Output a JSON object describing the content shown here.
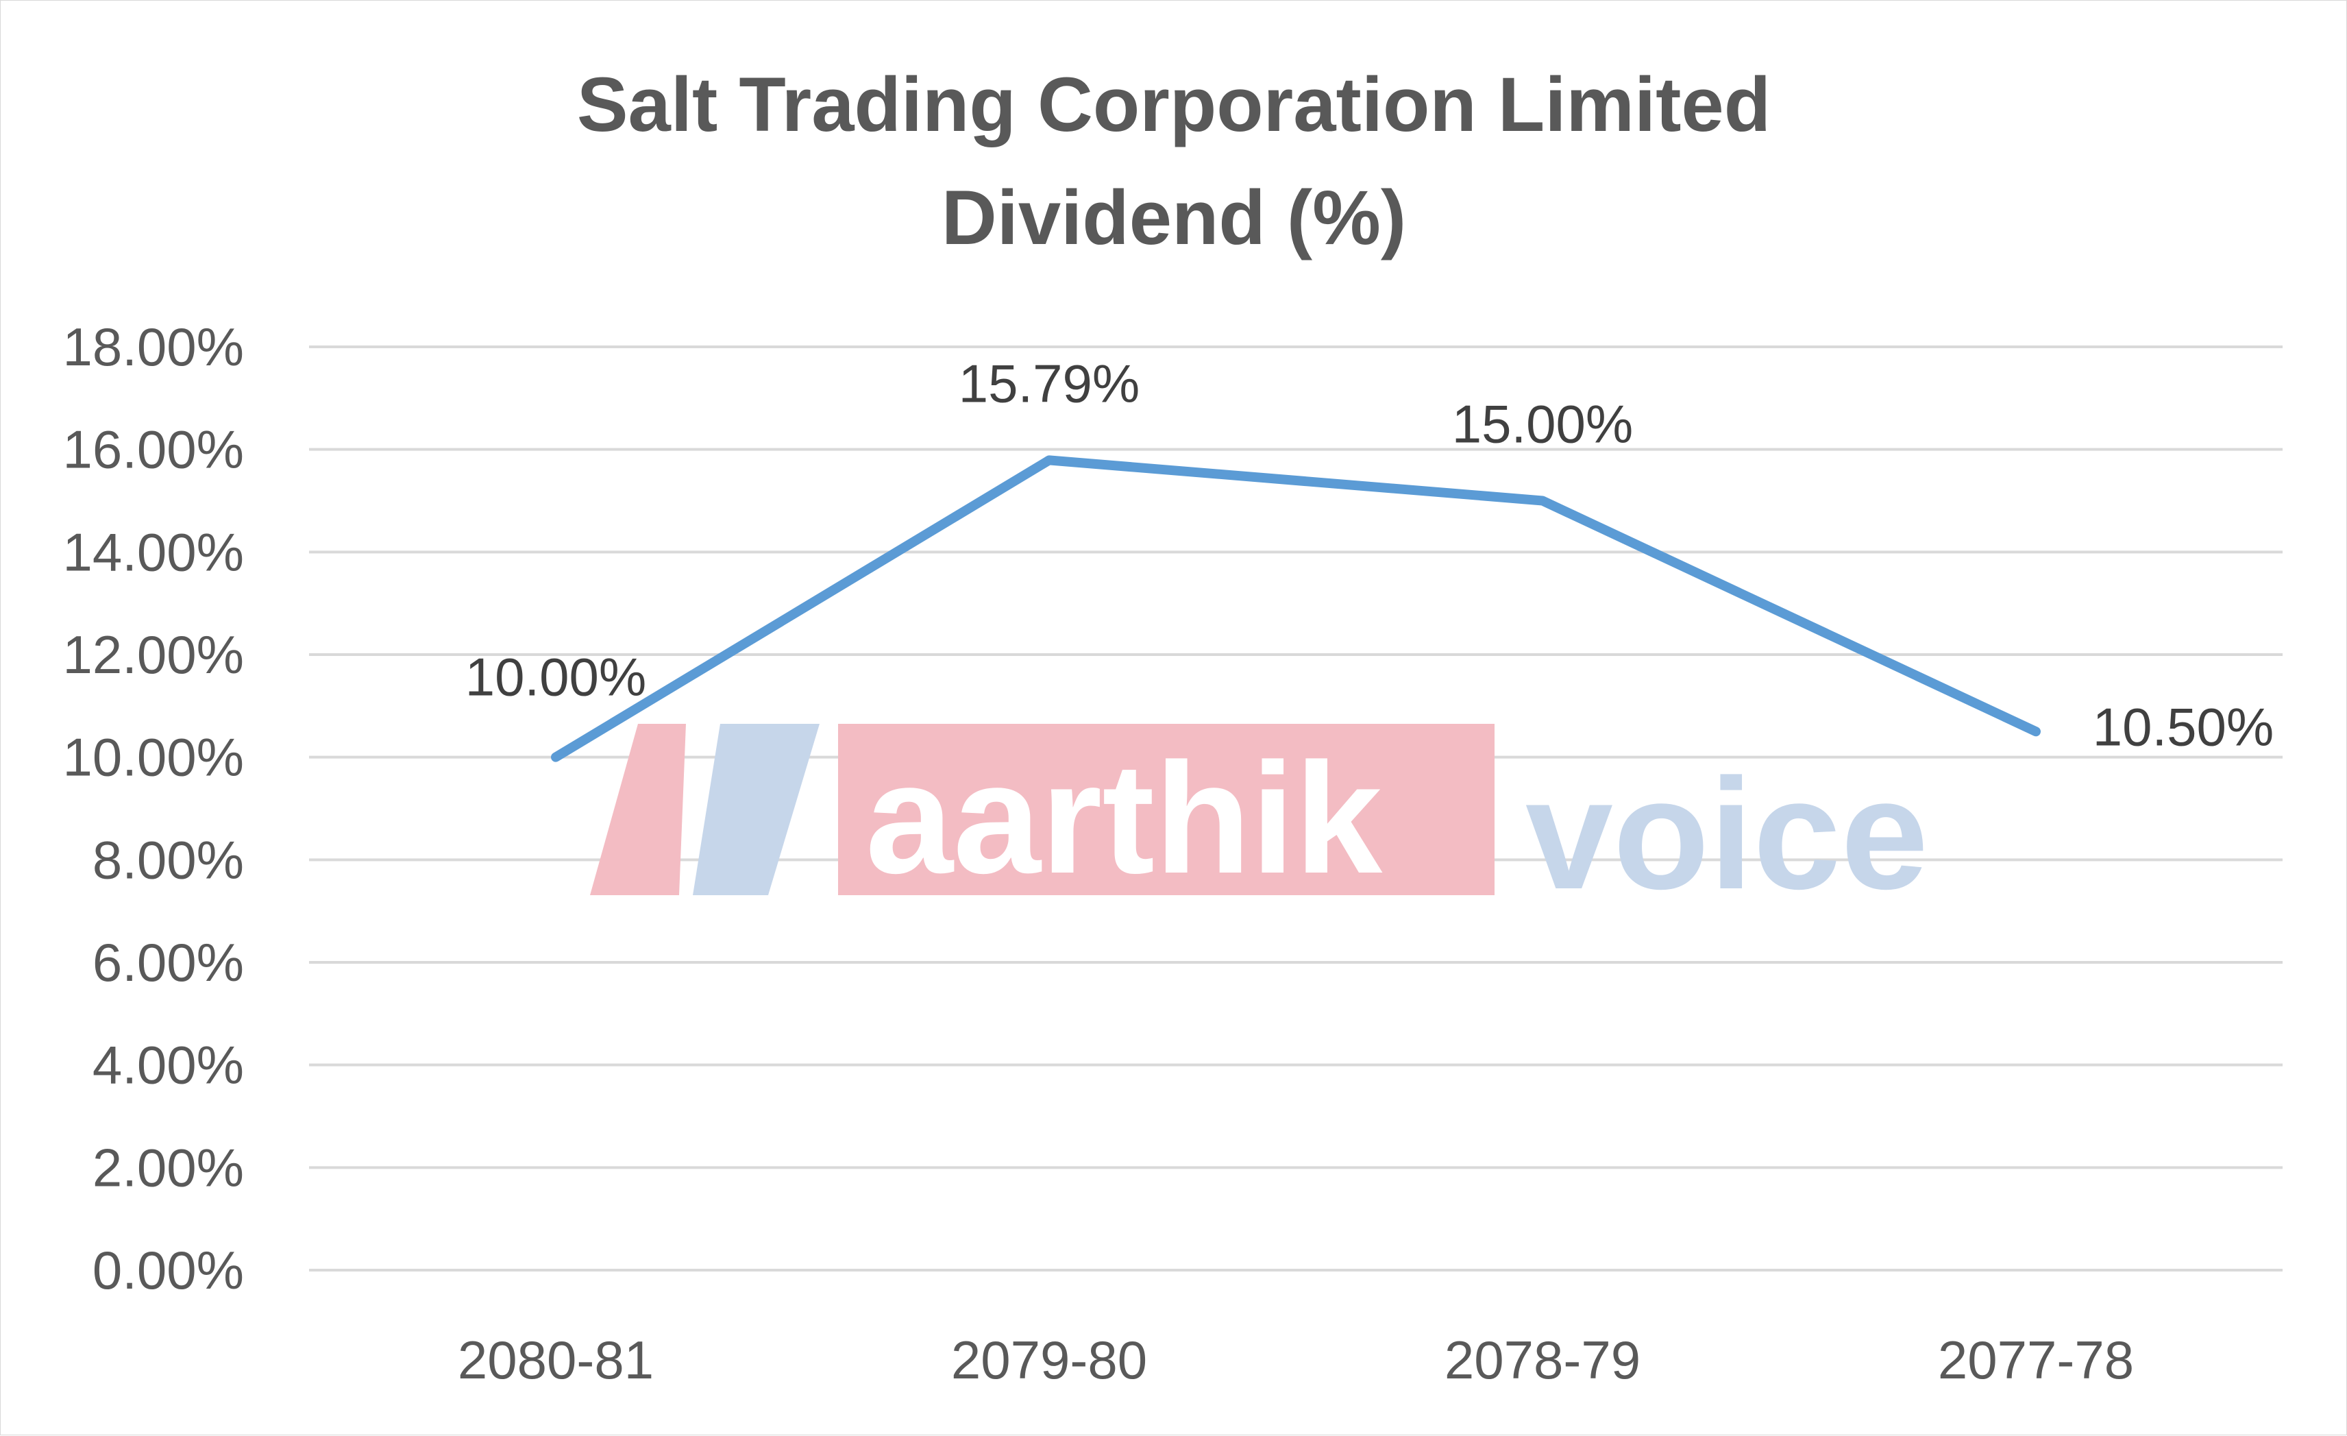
{
  "chart_data": {
    "type": "line",
    "title": "Salt Trading Corporation Limited Dividend (%)",
    "title_lines": [
      "Salt Trading Corporation Limited",
      "Dividend (%)"
    ],
    "categories": [
      "2080-81",
      "2079-80",
      "2078-79",
      "2077-78"
    ],
    "series": [
      {
        "values": [
          10.0,
          15.79,
          15.0,
          10.5
        ],
        "color": "#5b9bd5"
      }
    ],
    "data_labels": [
      "10.00%",
      "15.79%",
      "15.00%",
      "10.50%"
    ],
    "ylim": [
      0,
      18
    ],
    "y_ticks": [
      0,
      2,
      4,
      6,
      8,
      10,
      12,
      14,
      16,
      18
    ],
    "y_tick_labels": [
      "0.00%",
      "2.00%",
      "4.00%",
      "6.00%",
      "8.00%",
      "10.00%",
      "12.00%",
      "14.00%",
      "16.00%",
      "18.00%"
    ],
    "xlabel": "",
    "ylabel": "",
    "grid": true,
    "legend": "none"
  },
  "watermark": {
    "text_red": "aarthik",
    "text_blue": "voice",
    "red_color": "#f3bcc3",
    "blue_color": "#c6d6ea",
    "logo_icon": "av-logo-icon"
  },
  "colors": {
    "gridline": "#d9d9d9",
    "text": "#595959",
    "line": "#5b9bd5"
  }
}
